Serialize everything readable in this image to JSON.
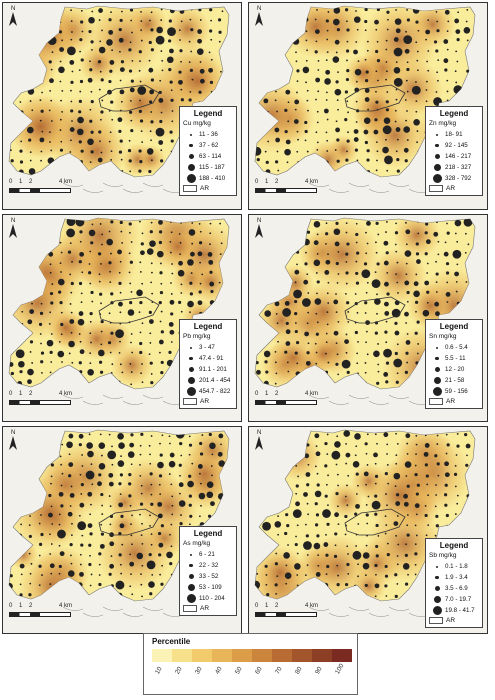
{
  "panels": [
    {
      "metal_label": "Cu mg/kg",
      "legend_title": "Legend",
      "ar_label": "AR",
      "classes": [
        "11 - 36",
        "37 - 62",
        "63 - 114",
        "115 - 187",
        "188 - 410"
      ],
      "scale_labels": [
        "0",
        "1",
        "2",
        "4 km"
      ],
      "north": "N"
    },
    {
      "metal_label": "Zn mg/kg",
      "legend_title": "Legend",
      "ar_label": "AR",
      "classes": [
        "18- 91",
        "92 - 145",
        "146 - 217",
        "218 - 327",
        "328 - 792"
      ],
      "scale_labels": [
        "0",
        "1",
        "2",
        "4 km"
      ],
      "north": "N"
    },
    {
      "metal_label": "Pb mg/kg",
      "legend_title": "Legend",
      "ar_label": "AR",
      "classes": [
        "3 - 47",
        "47.4 - 91",
        "91.1 - 201",
        "201.4 - 454",
        "454.7 - 822"
      ],
      "scale_labels": [
        "0",
        "1",
        "2",
        "4 km"
      ],
      "north": "N"
    },
    {
      "metal_label": "Sn mg/kg",
      "legend_title": "Legend",
      "ar_label": "AR",
      "classes": [
        "0.6 - 5.4",
        "5.5 - 11",
        "12 - 20",
        "21 - 58",
        "59 - 156"
      ],
      "scale_labels": [
        "0",
        "1",
        "2",
        "4 km"
      ],
      "north": "N"
    },
    {
      "metal_label": "As mg/kg",
      "legend_title": "Legend",
      "ar_label": "AR",
      "classes": [
        "6 - 21",
        "22 - 32",
        "33 - 52",
        "53 - 109",
        "110 - 204"
      ],
      "scale_labels": [
        "0",
        "1",
        "2",
        "4 km"
      ],
      "north": "N"
    },
    {
      "metal_label": "Sb mg/kg",
      "legend_title": "Legend",
      "ar_label": "AR",
      "classes": [
        "0.1 - 1.8",
        "1.9 - 3.4",
        "3.5 - 6.9",
        "7.0 - 19.7",
        "19.8 - 41.7"
      ],
      "scale_labels": [
        "0",
        "1",
        "2",
        "4 km"
      ],
      "north": "N"
    }
  ],
  "percentile_legend": {
    "title": "Percentile",
    "ticks": [
      "10",
      "20",
      "30",
      "40",
      "50",
      "60",
      "70",
      "80",
      "90",
      "100"
    ],
    "colors": [
      "#fbf3b5",
      "#f7e08a",
      "#f2cc6c",
      "#e8b558",
      "#dc9d48",
      "#cc853c",
      "#b86c34",
      "#a3552c",
      "#8c3f25",
      "#7a2a20"
    ]
  },
  "colors": {
    "sea": "#f2f1ec",
    "land_light": "#f9ec9b",
    "land_mid": "#e6b156",
    "land_dark": "#b46a32",
    "dot": "#222222",
    "coast": "#9a9a9a"
  }
}
